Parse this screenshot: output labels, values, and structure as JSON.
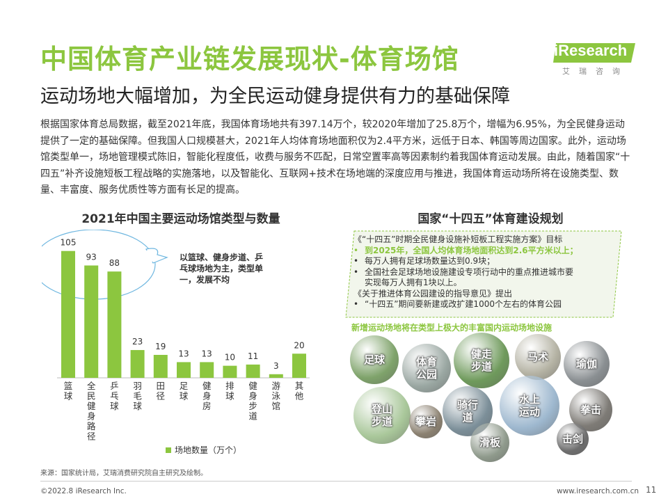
{
  "header": {
    "title": "中国体育产业链发展现状-体育场馆",
    "subtitle": "运动场地大幅增加，为全民运动健身提供有力的基础保障",
    "logo_word": "iResearch",
    "logo_sub": "艾瑞咨询"
  },
  "body_text": "根据国家体育总局数据，截至2021年底，我国体育场地共有397.14万个，较2020年增加了25.8万个，增幅为6.95%，为全民健身运动提供了一定的基础保障。但我国人口规模甚大，2021年人均体育场地面积仅为2.4平方米，远低于日本、韩国等周边国家。此外，运动场馆类型单一，场地管理模式陈旧，智能化程度低，收费与服务不匹配，日常空置率高等因素制约着我国体育运动发展。由此，随着国家“十四五”补齐设施短板工程战略的实施落地，以及智能化、互联网+技术在场地端的深度应用与推进，我国体育运动场所将在设施类型、数量、丰富度、服务优质性等方面有长足的提高。",
  "left_panel": {
    "title": "2021年中国主要运动场馆类型与数量",
    "callout": "以篮球、健身步道、乒乓球场地为主，类型单一，发展不均",
    "legend": "场地数量（万个）"
  },
  "chart_data": {
    "type": "bar",
    "title": "2021年中国主要运动场馆类型与数量",
    "categories": [
      "篮球",
      "全民健身路径",
      "乒乓球",
      "羽毛球",
      "田径",
      "足球",
      "健身房",
      "排球",
      "健身步道",
      "游泳馆",
      "其他"
    ],
    "series": [
      {
        "name": "场地数量（万个）",
        "values": [
          105,
          93,
          88,
          23,
          19,
          13,
          13,
          10,
          11,
          3,
          20
        ]
      }
    ],
    "ylim": [
      0,
      110
    ],
    "grid": false,
    "legend_position": "bottom",
    "colors": {
      "bar": "#8cc63f"
    }
  },
  "right_panel": {
    "title": "国家“十四五”体育建设规划",
    "plan_lines": [
      {
        "bullet": "",
        "text": "《“十四五”时期全民健身设施补短板工程实施方案》目标",
        "highlight": false
      },
      {
        "bullet": "•",
        "text": "到2025年，全国人均体育场地面积达到2.6平方米以上；",
        "highlight": true
      },
      {
        "bullet": "•",
        "text": "每万人拥有足球场数量达到0.9块；",
        "highlight": false
      },
      {
        "bullet": "•",
        "text": "全国社会足球场地设施建设专项行动中的重点推进城市要",
        "highlight": false
      },
      {
        "bullet": "",
        "text": "实现每万人拥有1块以上。",
        "highlight": false
      },
      {
        "bullet": "",
        "text": "《关于推进体育公园建设的指导意见》提出",
        "highlight": false
      },
      {
        "bullet": "•",
        "text": "“十四五”期间要新建或改扩建1000个左右的体育公园",
        "highlight": false
      }
    ],
    "caption": "新增运动场地将在类型上极大的丰富国内运动场地设施",
    "facilities": [
      "足球",
      "体育公园",
      "健走步道",
      "马术",
      "瑜伽",
      "登山步道",
      "骑行道",
      "水上运动",
      "拳击",
      "攀岩",
      "滑板",
      "击剑"
    ]
  },
  "footer": {
    "source": "来源：国家统计局，艾瑞消费研究院自主研究及绘制。",
    "copyright": "©2022.8 iResearch Inc.",
    "website": "www.iresearch.com.cn",
    "page": "11"
  },
  "colors": {
    "accent": "#8cc63f",
    "text": "#333333"
  }
}
